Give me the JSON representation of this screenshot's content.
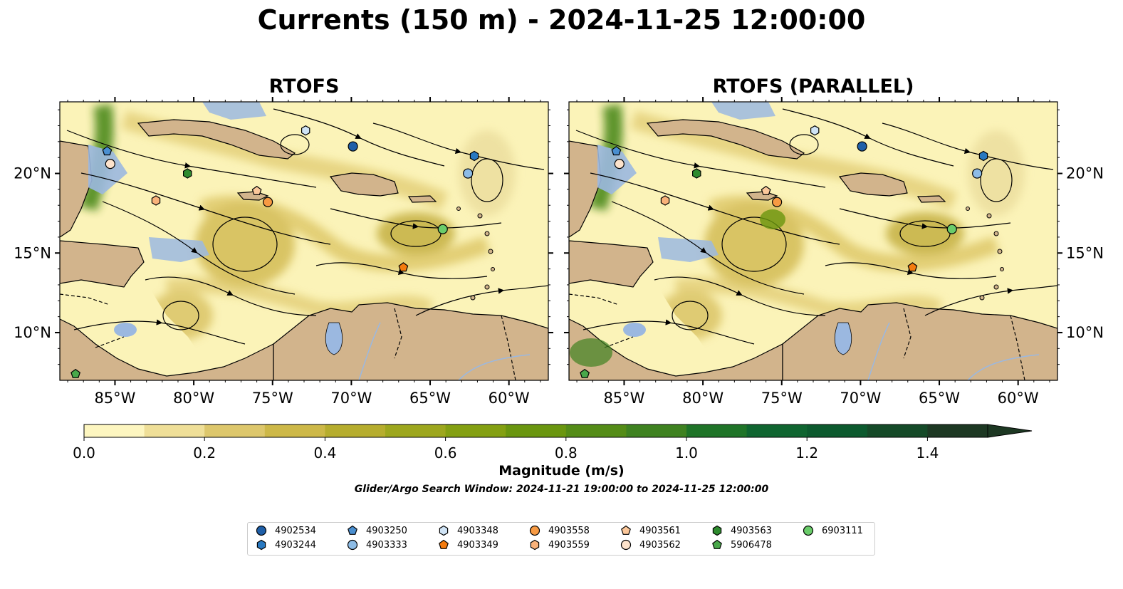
{
  "title": "Currents (150 m) - 2024-11-25 12:00:00",
  "panels": [
    {
      "title": "RTOFS"
    },
    {
      "title": "RTOFS (PARALLEL)"
    }
  ],
  "map": {
    "lon_range": [
      -88.5,
      -57.5
    ],
    "lat_range": [
      7,
      24.5
    ],
    "lon_ticks": [
      "85°W",
      "80°W",
      "75°W",
      "70°W",
      "65°W",
      "60°W"
    ],
    "lat_ticks": [
      "20°N",
      "15°N",
      "10°N"
    ],
    "colors": {
      "land": "#d2b48c",
      "lake": "#9bb8e0",
      "ocean_low": "#fbf3b8",
      "coast": "#000000"
    }
  },
  "colorbar": {
    "label": "Magnitude (m/s)",
    "ticks": [
      "0.0",
      "0.2",
      "0.4",
      "0.6",
      "0.8",
      "1.0",
      "1.2",
      "1.4"
    ],
    "min": 0.0,
    "max": 1.5,
    "extend": "max",
    "colors": [
      "#fdf6c0",
      "#efdf98",
      "#ddc76c",
      "#cdb848",
      "#b6ad2e",
      "#9da71e",
      "#84a012",
      "#6a960f",
      "#548c17",
      "#3f8221",
      "#1f7428",
      "#0f6530",
      "#0c5a2e",
      "#154a28",
      "#1d3823"
    ]
  },
  "window_label": "Glider/Argo Search Window: 2024-11-21 19:00:00 to 2024-11-25 12:00:00",
  "chart_data": {
    "type": "scatter",
    "title": "Currents (150 m) - 2024-11-25 12:00:00",
    "xlabel": "",
    "ylabel": "",
    "xlim": [
      -88.5,
      -57.5
    ],
    "ylim": [
      7,
      24.5
    ],
    "colorbar_label": "Magnitude (m/s)",
    "series": [
      {
        "name": "4902534",
        "marker": "circle",
        "color": "#1f5fa8",
        "x": -69.9,
        "y": 21.7
      },
      {
        "name": "4903244",
        "marker": "hexagon",
        "color": "#2878c0",
        "x": -62.2,
        "y": 21.1
      },
      {
        "name": "4903250",
        "marker": "pentagon",
        "color": "#4a8fd0",
        "x": -85.5,
        "y": 21.4
      },
      {
        "name": "4903333",
        "marker": "circle",
        "color": "#8dbce6",
        "x": -62.6,
        "y": 20.0
      },
      {
        "name": "4903348",
        "marker": "hexagon",
        "color": "#cfe3f5",
        "x": -72.9,
        "y": 22.7
      },
      {
        "name": "4903349",
        "marker": "pentagon",
        "color": "#f47b0e",
        "x": -66.7,
        "y": 14.1
      },
      {
        "name": "4903558",
        "marker": "circle",
        "color": "#f79a43",
        "x": -75.3,
        "y": 18.2
      },
      {
        "name": "4903559",
        "marker": "hexagon",
        "color": "#f9b27a",
        "x": -82.4,
        "y": 18.3
      },
      {
        "name": "4903561",
        "marker": "pentagon",
        "color": "#fbc79a",
        "x": -76.0,
        "y": 18.9
      },
      {
        "name": "4903562",
        "marker": "circle",
        "color": "#fde3cc",
        "x": -85.3,
        "y": 20.6
      },
      {
        "name": "4903563",
        "marker": "hexagon",
        "color": "#2e8b2e",
        "x": -80.4,
        "y": 20.0
      },
      {
        "name": "5906478",
        "marker": "pentagon",
        "color": "#49a84a",
        "x": -87.5,
        "y": 7.4
      },
      {
        "name": "6903111",
        "marker": "circle",
        "color": "#6acc6a",
        "x": -64.2,
        "y": 16.5
      }
    ]
  },
  "legend": {
    "entries": [
      {
        "label": "4902534",
        "marker": "circle",
        "color": "#1f5fa8"
      },
      {
        "label": "4903244",
        "marker": "hexagon",
        "color": "#2878c0"
      },
      {
        "label": "4903250",
        "marker": "pentagon",
        "color": "#4a8fd0"
      },
      {
        "label": "4903333",
        "marker": "circle",
        "color": "#8dbce6"
      },
      {
        "label": "4903348",
        "marker": "hexagon",
        "color": "#cfe3f5"
      },
      {
        "label": "4903349",
        "marker": "pentagon",
        "color": "#f47b0e"
      },
      {
        "label": "4903558",
        "marker": "circle",
        "color": "#f79a43"
      },
      {
        "label": "4903559",
        "marker": "hexagon",
        "color": "#f9b27a"
      },
      {
        "label": "4903561",
        "marker": "pentagon",
        "color": "#fbc79a"
      },
      {
        "label": "4903562",
        "marker": "circle",
        "color": "#fde3cc"
      },
      {
        "label": "4903563",
        "marker": "hexagon",
        "color": "#2e8b2e"
      },
      {
        "label": "5906478",
        "marker": "pentagon",
        "color": "#49a84a"
      },
      {
        "label": "6903111",
        "marker": "circle",
        "color": "#6acc6a"
      }
    ]
  }
}
